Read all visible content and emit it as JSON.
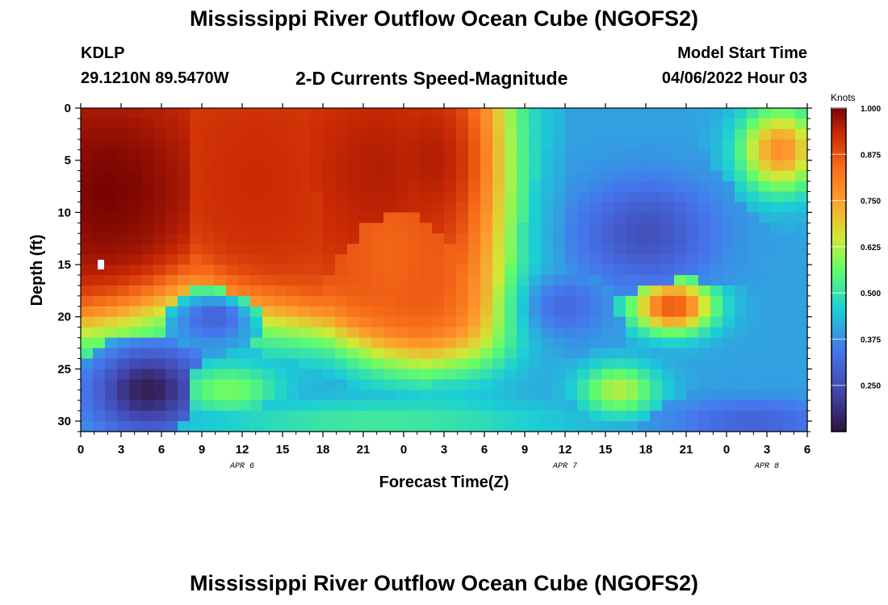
{
  "header": {
    "title": "Mississippi River Outflow Ocean Cube (NGOFS2)",
    "station": "KDLP",
    "coordinates": "29.1210N  89.5470W",
    "subtitle": "2-D Currents Speed-Magnitude",
    "start_label": "Model Start Time",
    "start_value": "04/06/2022 Hour 03"
  },
  "footer": {
    "title": "Mississippi River Outflow Ocean Cube (NGOFS2)"
  },
  "chart_data": {
    "type": "heatmap",
    "xlabel": "Forecast Time(Z)",
    "ylabel": "Depth (ft)",
    "colorbar_label": "Knots",
    "x_range_hours": [
      0,
      54
    ],
    "y_range_ft": [
      0,
      31
    ],
    "y_inverted": true,
    "x_ticks": [
      {
        "hour": 0,
        "label": "0"
      },
      {
        "hour": 3,
        "label": "3"
      },
      {
        "hour": 6,
        "label": "6"
      },
      {
        "hour": 9,
        "label": "9"
      },
      {
        "hour": 12,
        "label": "12"
      },
      {
        "hour": 15,
        "label": "15"
      },
      {
        "hour": 18,
        "label": "18"
      },
      {
        "hour": 21,
        "label": "21"
      },
      {
        "hour": 24,
        "label": "0"
      },
      {
        "hour": 27,
        "label": "3"
      },
      {
        "hour": 30,
        "label": "6"
      },
      {
        "hour": 33,
        "label": "9"
      },
      {
        "hour": 36,
        "label": "12"
      },
      {
        "hour": 39,
        "label": "15"
      },
      {
        "hour": 42,
        "label": "18"
      },
      {
        "hour": 45,
        "label": "21"
      },
      {
        "hour": 48,
        "label": "0"
      },
      {
        "hour": 51,
        "label": "3"
      },
      {
        "hour": 54,
        "label": "6"
      }
    ],
    "date_labels": [
      {
        "hour": 12,
        "label": "APR 6"
      },
      {
        "hour": 36,
        "label": "APR 7"
      },
      {
        "hour": 51,
        "label": "APR 8"
      }
    ],
    "y_ticks": [
      0,
      5,
      10,
      15,
      20,
      25,
      30
    ],
    "colorbar": {
      "min": 0.125,
      "max": 1.0,
      "ticks": [
        "1.000",
        "0.875",
        "0.750",
        "0.625",
        "0.500",
        "0.375",
        "0.250"
      ]
    },
    "marker": {
      "hour": 1.5,
      "depth_ft": 15
    },
    "features": [
      {
        "hour": 2,
        "depth_ft": 8,
        "width_h": 8,
        "depth_span_ft": 11,
        "knots": 1.0
      },
      {
        "hour": 13,
        "depth_ft": 7,
        "width_h": 6,
        "depth_span_ft": 11,
        "knots": 0.93
      },
      {
        "hour": 22,
        "depth_ft": 6,
        "width_h": 6,
        "depth_span_ft": 10,
        "knots": 0.95
      },
      {
        "hour": 26,
        "depth_ft": 5,
        "width_h": 4,
        "depth_span_ft": 8,
        "knots": 0.95
      },
      {
        "hour": 23,
        "depth_ft": 14,
        "width_h": 4,
        "depth_span_ft": 8,
        "knots": 0.85
      },
      {
        "hour": 10,
        "depth_ft": 20,
        "width_h": 3,
        "depth_span_ft": 2.5,
        "knots": 0.3
      },
      {
        "hour": 11,
        "depth_ft": 27,
        "width_h": 4,
        "depth_span_ft": 2.5,
        "knots": 0.58
      },
      {
        "hour": 22,
        "depth_ft": 30,
        "width_h": 14,
        "depth_span_ft": 2,
        "knots": 0.52
      },
      {
        "hour": 5,
        "depth_ft": 27,
        "width_h": 4,
        "depth_span_ft": 4,
        "knots": 0.15
      },
      {
        "hour": 42,
        "depth_ft": 12,
        "width_h": 5,
        "depth_span_ft": 5,
        "knots": 0.26
      },
      {
        "hour": 36,
        "depth_ft": 19,
        "width_h": 3,
        "depth_span_ft": 3,
        "knots": 0.32
      },
      {
        "hour": 44,
        "depth_ft": 19,
        "width_h": 3,
        "depth_span_ft": 2.5,
        "knots": 0.88
      },
      {
        "hour": 40,
        "depth_ft": 27,
        "width_h": 3,
        "depth_span_ft": 2.5,
        "knots": 0.63
      },
      {
        "hour": 52,
        "depth_ft": 4,
        "width_h": 3,
        "depth_span_ft": 4,
        "knots": 0.78
      },
      {
        "hour": 50,
        "depth_ft": 30,
        "width_h": 6,
        "depth_span_ft": 2,
        "knots": 0.3
      }
    ]
  }
}
